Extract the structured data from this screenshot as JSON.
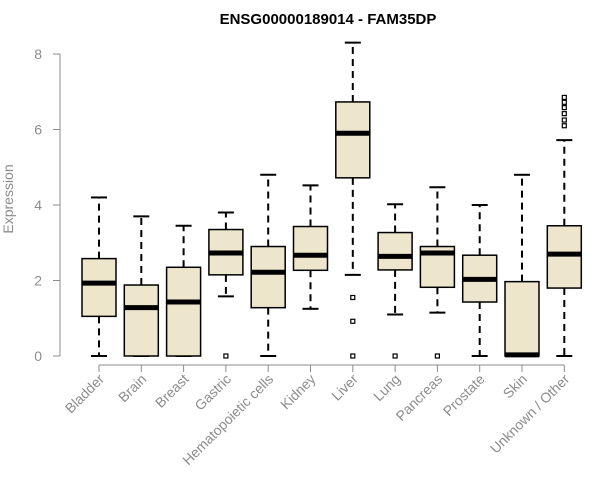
{
  "chart_data": {
    "type": "boxplot",
    "title": "ENSG00000189014 - FAM35DP",
    "xlabel": "",
    "ylabel": "Expression",
    "ylim": [
      0,
      8.3
    ],
    "yticks": [
      0,
      2,
      4,
      6,
      8
    ],
    "box_fill": "#ede6cc",
    "box_stroke": "#000000",
    "categories": [
      "Bladder",
      "Brain",
      "Breast",
      "Gastric",
      "Hematopoietic cells",
      "Kidney",
      "Liver",
      "Lung",
      "Pancreas",
      "Prostate",
      "Skin",
      "Unknown / Other"
    ],
    "boxes": [
      {
        "name": "Bladder",
        "whisker_low": 0,
        "q1": 1.05,
        "median": 1.93,
        "q3": 2.58,
        "whisker_high": 4.2,
        "outliers": []
      },
      {
        "name": "Brain",
        "whisker_low": 0,
        "q1": 0,
        "median": 1.28,
        "q3": 1.88,
        "whisker_high": 3.7,
        "outliers": []
      },
      {
        "name": "Breast",
        "whisker_low": 0,
        "q1": 0,
        "median": 1.43,
        "q3": 2.35,
        "whisker_high": 3.45,
        "outliers": []
      },
      {
        "name": "Gastric",
        "whisker_low": 1.58,
        "q1": 2.15,
        "median": 2.73,
        "q3": 3.35,
        "whisker_high": 3.8,
        "outliers": [
          0
        ]
      },
      {
        "name": "Hematopoietic cells",
        "whisker_low": 0,
        "q1": 1.28,
        "median": 2.22,
        "q3": 2.9,
        "whisker_high": 4.8,
        "outliers": []
      },
      {
        "name": "Kidney",
        "whisker_low": 1.25,
        "q1": 2.27,
        "median": 2.67,
        "q3": 3.43,
        "whisker_high": 4.52,
        "outliers": []
      },
      {
        "name": "Liver",
        "whisker_low": 2.15,
        "q1": 4.72,
        "median": 5.9,
        "q3": 6.73,
        "whisker_high": 8.3,
        "outliers": [
          1.55,
          0.92,
          0
        ]
      },
      {
        "name": "Lung",
        "whisker_low": 1.1,
        "q1": 2.28,
        "median": 2.64,
        "q3": 3.27,
        "whisker_high": 4.02,
        "outliers": [
          0
        ]
      },
      {
        "name": "Pancreas",
        "whisker_low": 1.15,
        "q1": 1.82,
        "median": 2.73,
        "q3": 2.9,
        "whisker_high": 4.47,
        "outliers": [
          0
        ]
      },
      {
        "name": "Prostate",
        "whisker_low": 0,
        "q1": 1.43,
        "median": 2.03,
        "q3": 2.67,
        "whisker_high": 4.0,
        "outliers": []
      },
      {
        "name": "Skin",
        "whisker_low": 0,
        "q1": 0,
        "median": 0.03,
        "q3": 1.97,
        "whisker_high": 4.8,
        "outliers": []
      },
      {
        "name": "Unknown / Other",
        "whisker_low": 0,
        "q1": 1.8,
        "median": 2.7,
        "q3": 3.45,
        "whisker_high": 5.72,
        "outliers": [
          6.1,
          6.25,
          6.42,
          6.58,
          6.72,
          6.85
        ]
      }
    ]
  }
}
